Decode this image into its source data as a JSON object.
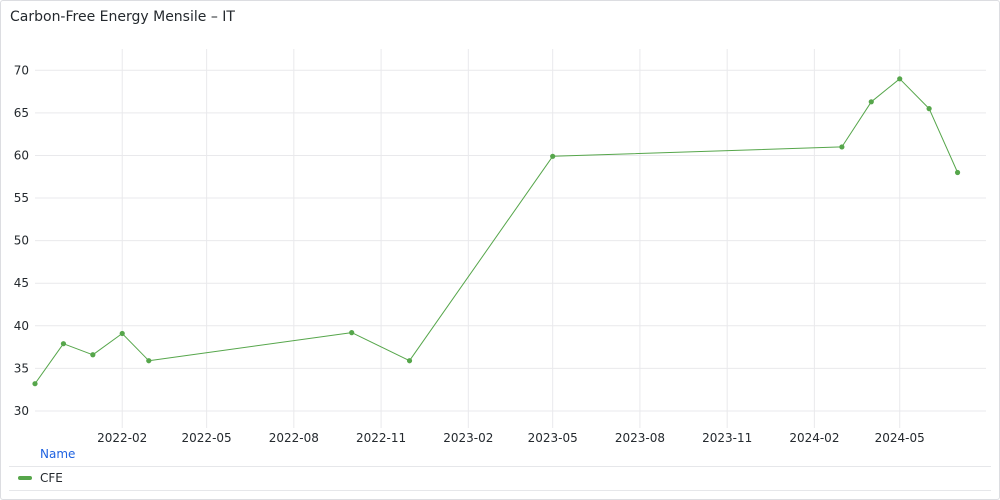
{
  "panel": {
    "title": "Carbon-Free Energy Mensile – IT"
  },
  "legend": {
    "header": "Name",
    "items": [
      {
        "label": "CFE",
        "color": "#56a64b"
      }
    ]
  },
  "chart_data": {
    "type": "line",
    "title": "Carbon-Free Energy Mensile – IT",
    "xlabel": "",
    "ylabel": "",
    "ylim": [
      28,
      72.5
    ],
    "xlim": [
      "2021-11-01",
      "2024-07-31"
    ],
    "grid": true,
    "legend_position": "bottom-left",
    "x_ticks": [
      "2022-02",
      "2022-05",
      "2022-08",
      "2022-11",
      "2023-02",
      "2023-05",
      "2023-08",
      "2023-11",
      "2024-02",
      "2024-05"
    ],
    "y_ticks": [
      30,
      35,
      40,
      45,
      50,
      55,
      60,
      65,
      70
    ],
    "series": [
      {
        "name": "CFE",
        "color": "#56a64b",
        "x": [
          "2021-11-01",
          "2021-12-01",
          "2022-01-01",
          "2022-02-01",
          "2022-03-01",
          "2022-10-01",
          "2022-12-01",
          "2023-05-01",
          "2024-03-01",
          "2024-04-01",
          "2024-05-01",
          "2024-06-01",
          "2024-07-01"
        ],
        "values": [
          33.2,
          37.9,
          36.6,
          39.1,
          35.9,
          39.2,
          35.9,
          59.9,
          61.0,
          66.3,
          69.0,
          65.5,
          58.0
        ]
      }
    ]
  }
}
